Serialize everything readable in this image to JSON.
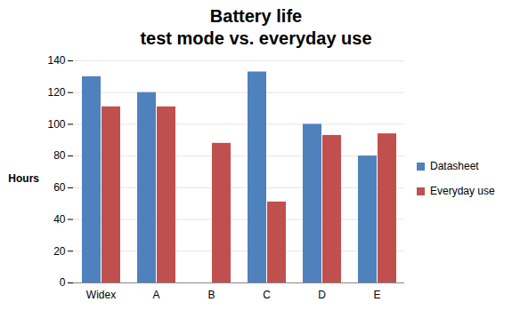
{
  "chart_data": {
    "type": "bar",
    "title": "Battery life",
    "subtitle": "test mode vs. everyday use",
    "y_label": "Hours",
    "categories": [
      "Widex",
      "A",
      "B",
      "C",
      "D",
      "E"
    ],
    "series": [
      {
        "name": "Datasheet",
        "color": "#4f81bd",
        "values": [
          130,
          120,
          null,
          133,
          100,
          80
        ]
      },
      {
        "name": "Everyday use",
        "color": "#c0504d",
        "values": [
          111,
          111,
          88,
          51,
          93,
          94
        ]
      }
    ],
    "ylim": [
      0,
      140
    ],
    "yticks": [
      0,
      20,
      40,
      60,
      80,
      100,
      120,
      140
    ],
    "grid": true,
    "legend": "right"
  }
}
